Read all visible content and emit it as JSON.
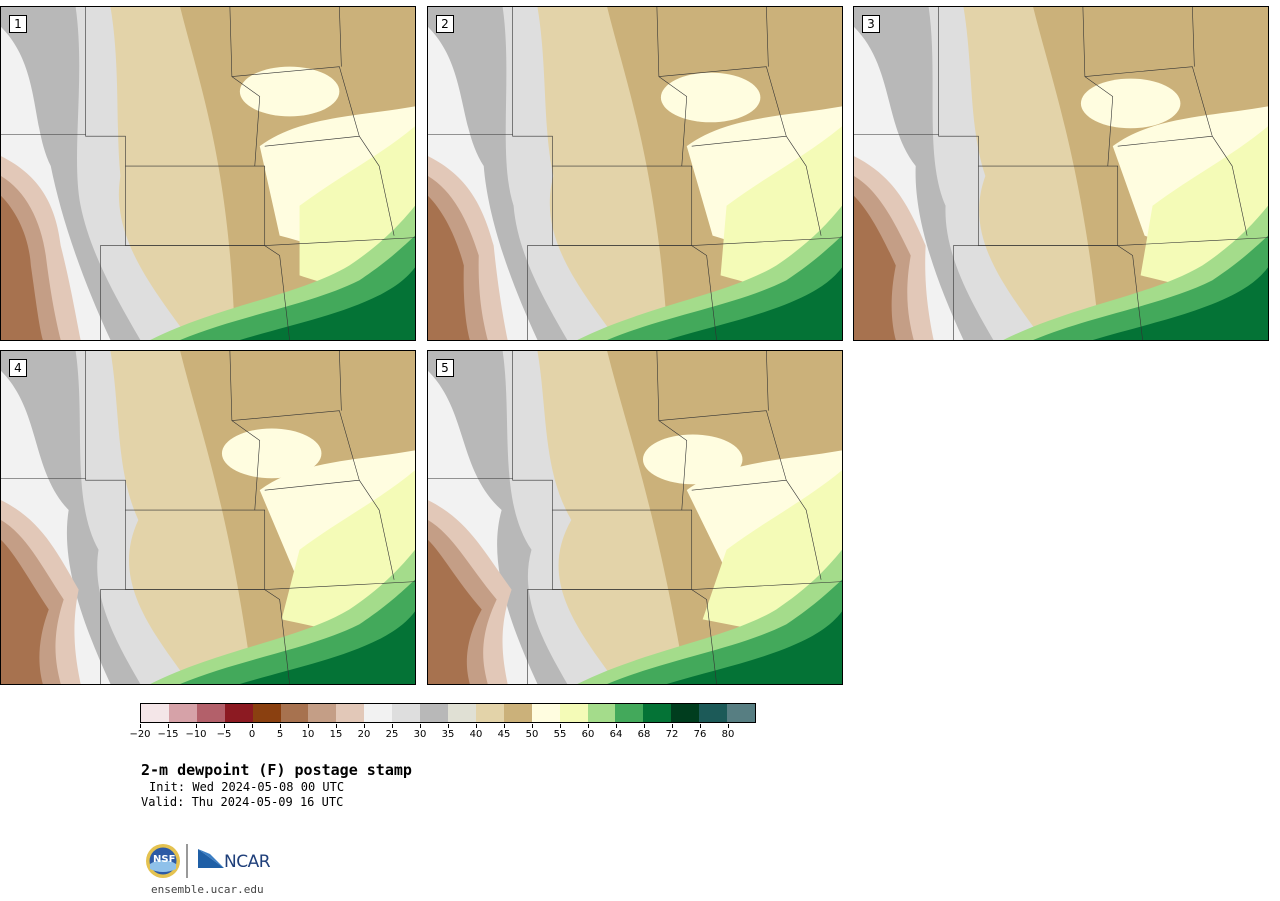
{
  "panels": [
    {
      "number": "1",
      "variant": 0
    },
    {
      "number": "2",
      "variant": 1
    },
    {
      "number": "3",
      "variant": 2
    },
    {
      "number": "4",
      "variant": 3
    },
    {
      "number": "5",
      "variant": 4
    }
  ],
  "colorbar": {
    "colors": [
      "#f4e6e8",
      "#d6a2a8",
      "#b3606a",
      "#8c1a22",
      "#8a4010",
      "#a7724f",
      "#c49e86",
      "#e2c8b8",
      "#f2f2f2",
      "#dedede",
      "#b8b8b8",
      "#e0e0d4",
      "#e3d3a9",
      "#cbb17a",
      "#fffde0",
      "#f4fbb7",
      "#a4dc8b",
      "#43a95b",
      "#047336",
      "#003d1e",
      "#1c5a58",
      "#577e82"
    ],
    "tick_labels": [
      "−20",
      "−15",
      "−10",
      "−5",
      "0",
      "5",
      "10",
      "15",
      "20",
      "25",
      "30",
      "35",
      "40",
      "45",
      "50",
      "55",
      "60",
      "64",
      "68",
      "72",
      "76",
      "80"
    ]
  },
  "title": "2-m dewpoint (F) postage stamp",
  "init_text": "Init: Wed 2024-05-08 00 UTC",
  "valid_text": "Valid: Thu 2024-05-09 16 UTC",
  "logos": {
    "nsf": "NSF",
    "ncar": "NCAR"
  },
  "website": "ensemble.ucar.edu"
}
